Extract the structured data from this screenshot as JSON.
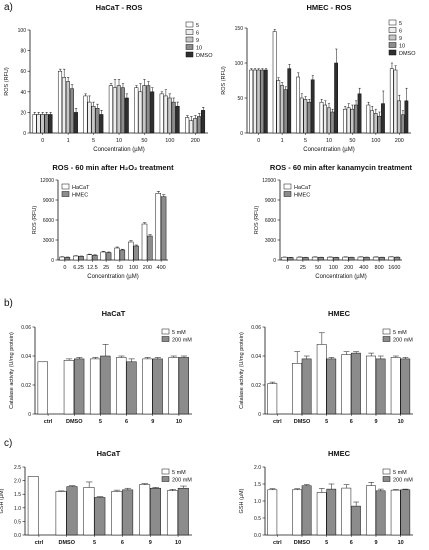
{
  "panel_labels": [
    "a)",
    "b)",
    "c)"
  ],
  "chart_data": [
    {
      "type": "bar",
      "title": "HaCaT - ROS",
      "xlabel": "Concentration (µM)",
      "ylabel": "ROS (RFU)",
      "ylim": [
        0,
        100
      ],
      "yticks": [
        0,
        20,
        40,
        60,
        80,
        100
      ],
      "grid": false,
      "legend": "top-right",
      "categories": [
        "0",
        "1",
        "5",
        "10",
        "50",
        "100",
        "200"
      ],
      "series": [
        {
          "name": "5",
          "color": "#ffffff",
          "values": [
            18,
            60,
            36,
            46,
            44,
            38,
            15
          ]
        },
        {
          "name": "6",
          "color": "#ededed",
          "values": [
            18,
            54,
            30,
            44,
            40,
            36,
            12
          ]
        },
        {
          "name": "9",
          "color": "#c6c6c6",
          "values": [
            18,
            50,
            26,
            46,
            46,
            34,
            14
          ]
        },
        {
          "name": "10",
          "color": "#8c8c8c",
          "values": [
            18,
            43,
            24,
            44,
            46,
            30,
            16
          ]
        },
        {
          "name": "DMSO",
          "color": "#2f2f2f",
          "values": [
            18,
            20,
            18,
            34,
            40,
            26,
            22
          ]
        }
      ],
      "errors": [
        [
          2,
          2,
          2,
          2,
          2,
          2,
          2
        ],
        [
          2,
          8,
          6,
          8,
          8,
          6,
          4
        ],
        [
          2,
          4,
          4,
          6,
          6,
          4,
          3
        ],
        [
          2,
          4,
          4,
          4,
          4,
          4,
          3
        ],
        [
          2,
          4,
          4,
          4,
          4,
          4,
          3
        ]
      ]
    },
    {
      "type": "bar",
      "title": "HMEC - ROS",
      "xlabel": "Concentration (µM)",
      "ylabel": "ROS (RFU)",
      "ylim": [
        0,
        150
      ],
      "yticks": [
        0,
        50,
        100,
        150
      ],
      "grid": false,
      "legend": "top-right",
      "categories": [
        "0",
        "1",
        "5",
        "10",
        "50",
        "100",
        "200"
      ],
      "series": [
        {
          "name": "5",
          "color": "#ffffff",
          "values": [
            90,
            145,
            80,
            44,
            34,
            40,
            92
          ]
        },
        {
          "name": "6",
          "color": "#ededed",
          "values": [
            90,
            75,
            50,
            40,
            36,
            32,
            90
          ]
        },
        {
          "name": "9",
          "color": "#c6c6c6",
          "values": [
            90,
            68,
            48,
            36,
            34,
            28,
            46
          ]
        },
        {
          "name": "10",
          "color": "#8c8c8c",
          "values": [
            90,
            62,
            44,
            30,
            40,
            24,
            26
          ]
        },
        {
          "name": "DMSO",
          "color": "#2f2f2f",
          "values": [
            90,
            92,
            76,
            100,
            56,
            42,
            46
          ]
        }
      ],
      "errors": [
        [
          2,
          3,
          6,
          4,
          4,
          4,
          8
        ],
        [
          2,
          4,
          6,
          6,
          6,
          6,
          6
        ],
        [
          2,
          4,
          4,
          6,
          6,
          6,
          8
        ],
        [
          2,
          4,
          4,
          4,
          6,
          6,
          6
        ],
        [
          2,
          6,
          6,
          20,
          8,
          18,
          18
        ]
      ]
    },
    {
      "type": "bar",
      "title": "ROS - 60 min after H₂O₂ treatment",
      "xlabel": "Concentration (µM)",
      "ylabel": "ROS (RFU)",
      "ylim": [
        0,
        12000
      ],
      "yticks": [
        0,
        3000,
        6000,
        9000,
        12000
      ],
      "grid": false,
      "legend": "top-left",
      "categories": [
        "0",
        "6.25",
        "12.5",
        "25",
        "50",
        "100",
        "200",
        "400"
      ],
      "series": [
        {
          "name": "HaCaT",
          "color": "#ffffff",
          "values": [
            450,
            600,
            800,
            1200,
            1800,
            2700,
            5400,
            10000
          ]
        },
        {
          "name": "HMEC",
          "color": "#8c8c8c",
          "values": [
            400,
            550,
            700,
            1100,
            1500,
            2100,
            3600,
            9500
          ]
        }
      ],
      "errors": [
        [
          50,
          50,
          80,
          100,
          150,
          200,
          200,
          300
        ],
        [
          50,
          50,
          80,
          100,
          120,
          150,
          200,
          300
        ]
      ]
    },
    {
      "type": "bar",
      "title": "ROS - 60 min after kanamycin treatment",
      "xlabel": "Concentration (µM)",
      "ylabel": "ROS (RFU)",
      "ylim": [
        0,
        12000
      ],
      "yticks": [
        0,
        3000,
        6000,
        9000,
        12000
      ],
      "grid": false,
      "legend": "top-left",
      "categories": [
        "0",
        "25",
        "50",
        "100",
        "200",
        "400",
        "800",
        "1600"
      ],
      "series": [
        {
          "name": "HaCaT",
          "color": "#ffffff",
          "values": [
            420,
            430,
            440,
            430,
            440,
            450,
            440,
            460
          ]
        },
        {
          "name": "HMEC",
          "color": "#8c8c8c",
          "values": [
            380,
            390,
            400,
            390,
            400,
            410,
            400,
            420
          ]
        }
      ],
      "errors": [
        [
          30,
          30,
          30,
          30,
          30,
          30,
          30,
          30
        ],
        [
          30,
          30,
          30,
          30,
          30,
          30,
          30,
          30
        ]
      ]
    },
    {
      "type": "bar",
      "title": "HaCaT",
      "xlabel": "",
      "ylabel": "Catalase activity (U/mg protein)",
      "ylim": [
        0,
        0.06
      ],
      "yticks": [
        0,
        0.02,
        0.04,
        0.06
      ],
      "grid": false,
      "legend": "top-right",
      "categories": [
        "ctrl",
        "DMSO",
        "5",
        "6",
        "9",
        "10"
      ],
      "series": [
        {
          "name": "5 mM",
          "color": "#ffffff",
          "values": [
            0.036,
            0.037,
            0.038,
            0.039,
            0.038,
            0.039
          ]
        },
        {
          "name": "200 mM",
          "color": "#8c8c8c",
          "values": [
            null,
            0.038,
            0.04,
            0.036,
            0.038,
            0.039
          ]
        }
      ],
      "errors": [
        [
          0,
          0.001,
          0.001,
          0.001,
          0.001,
          0.001
        ],
        [
          0,
          0.001,
          0.008,
          0.002,
          0.001,
          0.001
        ]
      ]
    },
    {
      "type": "bar",
      "title": "HMEC",
      "xlabel": "",
      "ylabel": "Catalase activity (U/mg protein)",
      "ylim": [
        0,
        0.06
      ],
      "yticks": [
        0,
        0.02,
        0.04,
        0.06
      ],
      "grid": false,
      "legend": "top-right",
      "categories": [
        "ctrl",
        "DMSO",
        "5",
        "6",
        "9",
        "10"
      ],
      "series": [
        {
          "name": "5 mM",
          "color": "#ffffff",
          "values": [
            0.021,
            0.035,
            0.048,
            0.041,
            0.04,
            0.039
          ]
        },
        {
          "name": "200 mM",
          "color": "#8c8c8c",
          "values": [
            null,
            0.038,
            0.038,
            0.042,
            0.038,
            0.038
          ]
        }
      ],
      "errors": [
        [
          0.001,
          0.008,
          0.008,
          0.002,
          0.002,
          0.001
        ],
        [
          0,
          0.002,
          0.001,
          0.001,
          0.002,
          0.001
        ]
      ]
    },
    {
      "type": "bar",
      "title": "HaCaT",
      "xlabel": "",
      "ylabel": "GSH (µM)",
      "ylim": [
        0,
        2.5
      ],
      "yticks": [
        0,
        0.5,
        1.0,
        1.5,
        2.0,
        2.5
      ],
      "ytick_labels": [
        "0.0",
        "0.5",
        "1.0",
        "1.5",
        "2.0",
        "2.5"
      ],
      "grid": false,
      "legend": "top-right",
      "categories": [
        "ctrl",
        "DMSO",
        "5",
        "6",
        "9",
        "10"
      ],
      "series": [
        {
          "name": "5 mM",
          "color": "#ffffff",
          "values": [
            2.15,
            1.6,
            1.75,
            1.6,
            1.85,
            1.63
          ]
        },
        {
          "name": "200 mM",
          "color": "#8c8c8c",
          "values": [
            null,
            1.78,
            1.38,
            1.66,
            1.72,
            1.72
          ]
        }
      ],
      "errors": [
        [
          0,
          0.02,
          0.2,
          0.05,
          0.04,
          0.05
        ],
        [
          0,
          0.03,
          0.03,
          0.06,
          0.03,
          0.08
        ]
      ]
    },
    {
      "type": "bar",
      "title": "HMEC",
      "xlabel": "",
      "ylabel": "GSH (µM)",
      "ylim": [
        0,
        2.0
      ],
      "yticks": [
        0,
        0.5,
        1.0,
        1.5,
        2.0
      ],
      "ytick_labels": [
        "0.0",
        "0.5",
        "1.0",
        "1.5",
        "2.0"
      ],
      "grid": false,
      "legend": "top-right",
      "categories": [
        "ctrl",
        "DMSO",
        "5",
        "6",
        "9",
        "10"
      ],
      "series": [
        {
          "name": "5 mM",
          "color": "#ffffff",
          "values": [
            1.33,
            1.33,
            1.25,
            1.38,
            1.45,
            1.32
          ]
        },
        {
          "name": "200 mM",
          "color": "#8c8c8c",
          "values": [
            null,
            1.45,
            1.35,
            0.85,
            1.3,
            1.33
          ]
        }
      ],
      "errors": [
        [
          0.03,
          0.03,
          0.12,
          0.1,
          0.1,
          0.02
        ],
        [
          0,
          0.03,
          0.15,
          0.12,
          0.05,
          0.02
        ]
      ]
    }
  ]
}
